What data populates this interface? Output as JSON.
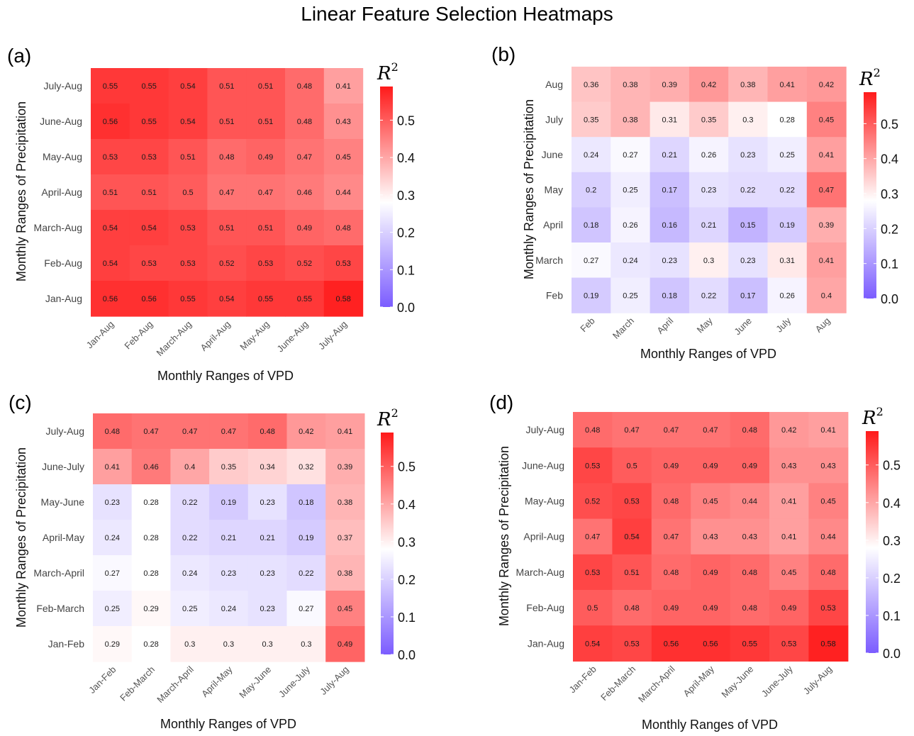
{
  "title": "Linear Feature Selection Heatmaps",
  "colorscale": {
    "label_base": "R",
    "label_exp": "2",
    "min": 0.0,
    "mid": 0.28,
    "max": 0.59,
    "low_color": "#7b5cff",
    "mid_color": "#ffffff",
    "high_color": "#ff1a1a",
    "ticks": [
      "0.0",
      "0.1",
      "0.2",
      "0.3",
      "0.4",
      "0.5"
    ]
  },
  "chart_data": [
    {
      "type": "heatmap",
      "panel_label": "(a)",
      "xlabel": "Monthly Ranges of VPD",
      "ylabel": "Monthly Ranges of Precipitation",
      "x": [
        "Jan-Aug",
        "Feb-Aug",
        "March-Aug",
        "April-Aug",
        "May-Aug",
        "June-Aug",
        "July-Aug"
      ],
      "y": [
        "Jan-Aug",
        "Feb-Aug",
        "March-Aug",
        "April-Aug",
        "May-Aug",
        "June-Aug",
        "July-Aug"
      ],
      "values": [
        [
          0.55,
          0.55,
          0.54,
          0.51,
          0.51,
          0.48,
          0.41
        ],
        [
          0.56,
          0.55,
          0.54,
          0.51,
          0.51,
          0.48,
          0.43
        ],
        [
          0.53,
          0.53,
          0.51,
          0.48,
          0.49,
          0.47,
          0.45
        ],
        [
          0.51,
          0.51,
          0.5,
          0.47,
          0.47,
          0.46,
          0.44
        ],
        [
          0.54,
          0.54,
          0.53,
          0.51,
          0.51,
          0.49,
          0.48
        ],
        [
          0.54,
          0.53,
          0.53,
          0.52,
          0.53,
          0.52,
          0.53
        ],
        [
          0.56,
          0.56,
          0.55,
          0.54,
          0.55,
          0.55,
          0.58
        ]
      ]
    },
    {
      "type": "heatmap",
      "panel_label": "(b)",
      "xlabel": "Monthly Ranges of VPD",
      "ylabel": "Monthly Ranges of Precipitation",
      "x": [
        "Feb",
        "March",
        "April",
        "May",
        "June",
        "July",
        "Aug"
      ],
      "y": [
        "Feb",
        "March",
        "April",
        "May",
        "June",
        "July",
        "Aug"
      ],
      "values": [
        [
          0.36,
          0.38,
          0.39,
          0.42,
          0.38,
          0.41,
          0.42
        ],
        [
          0.35,
          0.38,
          0.31,
          0.35,
          0.3,
          0.28,
          0.45
        ],
        [
          0.24,
          0.27,
          0.21,
          0.26,
          0.23,
          0.25,
          0.41
        ],
        [
          0.2,
          0.25,
          0.17,
          0.23,
          0.22,
          0.22,
          0.47
        ],
        [
          0.18,
          0.26,
          0.16,
          0.21,
          0.15,
          0.19,
          0.39
        ],
        [
          0.27,
          0.24,
          0.23,
          0.3,
          0.23,
          0.31,
          0.41
        ],
        [
          0.19,
          0.25,
          0.18,
          0.22,
          0.17,
          0.26,
          0.4
        ]
      ]
    },
    {
      "type": "heatmap",
      "panel_label": "(c)",
      "xlabel": "Monthly Ranges of VPD",
      "ylabel": "Monthly Ranges of Precipitation",
      "x": [
        "Jan-Feb",
        "Feb-March",
        "March-April",
        "April-May",
        "May-June",
        "June-July",
        "July-Aug"
      ],
      "y": [
        "Jan-Feb",
        "Feb-March",
        "March-April",
        "April-May",
        "May-June",
        "June-July",
        "July-Aug"
      ],
      "values": [
        [
          0.48,
          0.47,
          0.47,
          0.47,
          0.48,
          0.42,
          0.41
        ],
        [
          0.41,
          0.46,
          0.4,
          0.35,
          0.34,
          0.32,
          0.39
        ],
        [
          0.23,
          0.28,
          0.22,
          0.19,
          0.23,
          0.18,
          0.38
        ],
        [
          0.24,
          0.28,
          0.22,
          0.21,
          0.21,
          0.19,
          0.37
        ],
        [
          0.27,
          0.28,
          0.24,
          0.23,
          0.23,
          0.22,
          0.38
        ],
        [
          0.25,
          0.29,
          0.25,
          0.24,
          0.23,
          0.27,
          0.45
        ],
        [
          0.29,
          0.28,
          0.3,
          0.3,
          0.3,
          0.3,
          0.49
        ]
      ]
    },
    {
      "type": "heatmap",
      "panel_label": "(d)",
      "xlabel": "Monthly Ranges of VPD",
      "ylabel": "Monthly Ranges of Precipitation",
      "x": [
        "Jan-Feb",
        "Feb-March",
        "March-April",
        "April-May",
        "May-June",
        "June-July",
        "July-Aug"
      ],
      "y": [
        "Jan-Aug",
        "Feb-Aug",
        "March-Aug",
        "April-Aug",
        "May-Aug",
        "June-Aug",
        "July-Aug"
      ],
      "values": [
        [
          0.48,
          0.47,
          0.47,
          0.47,
          0.48,
          0.42,
          0.41
        ],
        [
          0.53,
          0.5,
          0.49,
          0.49,
          0.49,
          0.43,
          0.43
        ],
        [
          0.52,
          0.53,
          0.48,
          0.45,
          0.44,
          0.41,
          0.45
        ],
        [
          0.47,
          0.54,
          0.47,
          0.43,
          0.43,
          0.41,
          0.44
        ],
        [
          0.53,
          0.51,
          0.48,
          0.49,
          0.48,
          0.45,
          0.48
        ],
        [
          0.5,
          0.48,
          0.49,
          0.49,
          0.48,
          0.49,
          0.53
        ],
        [
          0.54,
          0.53,
          0.56,
          0.56,
          0.55,
          0.53,
          0.58
        ]
      ]
    }
  ]
}
